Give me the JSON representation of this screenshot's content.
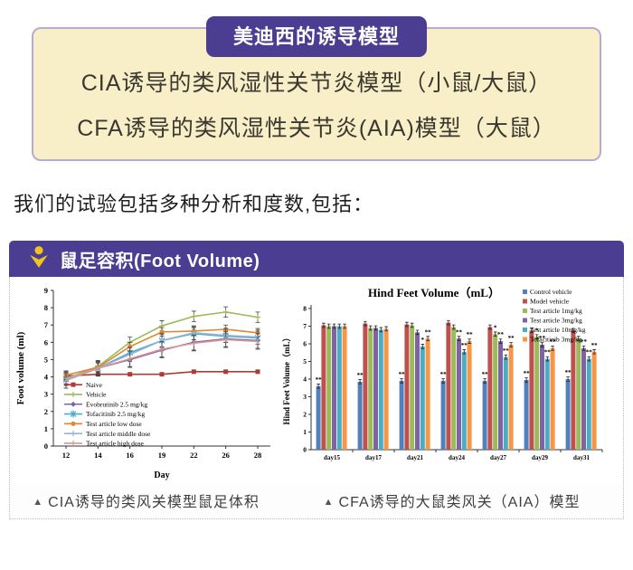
{
  "badge": {
    "label": "美迪西的诱导模型"
  },
  "model_box": {
    "lines": [
      "CIA诱导的类风湿性关节炎模型（小鼠/大鼠）",
      "CFA诱导的类风湿性关节炎(AIA)模型（大鼠）"
    ]
  },
  "intro": {
    "text": "我们的试验包括多种分析和度数,包括："
  },
  "panel": {
    "title": "鼠足容积(Foot Volume)",
    "icon_color": "#f2c21d",
    "captions": {
      "marker": "▲",
      "left": "CIA诱导的类风关模型鼠足体积",
      "right": "CFA诱导的大鼠类风关（AIA）模型"
    }
  },
  "colors": {
    "accent_purple": "#4b3d92",
    "cream": "#f8eec8",
    "cream_border": "#b7abd4"
  },
  "chart_data": [
    {
      "type": "line",
      "title": "",
      "xlabel": "Day",
      "ylabel": "Foot volume (ml)",
      "x": [
        12,
        14,
        16,
        19,
        22,
        26,
        28
      ],
      "ylim": [
        0,
        9
      ],
      "yticks": [
        0,
        1,
        2,
        3,
        4,
        5,
        6,
        7,
        8,
        9
      ],
      "grid": false,
      "legend_position": "inside-lower-left",
      "series": [
        {
          "name": "Naive",
          "color": "#b03a36",
          "marker": "square",
          "err": 0.08,
          "values": [
            4.05,
            4.15,
            4.15,
            4.15,
            4.3,
            4.3,
            4.3
          ]
        },
        {
          "name": "Vehicle",
          "color": "#9bbb59",
          "marker": "plus",
          "err": 0.3,
          "values": [
            3.9,
            4.6,
            6.0,
            6.95,
            7.5,
            7.75,
            7.45
          ]
        },
        {
          "name": "Evobrutinib 2.5 mg/kg",
          "color": "#8064a2",
          "marker": "diamond",
          "err": 0.45,
          "values": [
            3.8,
            4.5,
            5.0,
            5.55,
            6.0,
            6.2,
            6.1
          ]
        },
        {
          "name": "Tofacitinib 2.5 mg/kg",
          "color": "#4bacc6",
          "marker": "x",
          "err": 0.35,
          "values": [
            3.85,
            4.5,
            5.4,
            6.1,
            6.5,
            6.35,
            6.25
          ]
        },
        {
          "name": "Test article low dose",
          "color": "#e0862f",
          "marker": "circle",
          "err": 0.25,
          "values": [
            4.1,
            4.55,
            5.75,
            6.6,
            6.65,
            6.75,
            6.55
          ]
        },
        {
          "name": "Test article middle dose",
          "color": "#95b3d7",
          "marker": "tick",
          "err": 0.4,
          "values": [
            3.9,
            4.5,
            5.3,
            6.1,
            6.55,
            6.4,
            6.3
          ]
        },
        {
          "name": "Test article high dose",
          "color": "#d99694",
          "marker": "tick",
          "err": 0.45,
          "values": [
            3.8,
            4.5,
            5.05,
            5.6,
            5.95,
            6.15,
            6.05
          ]
        }
      ]
    },
    {
      "type": "bar",
      "title": "Hind Feet Volume（mL）",
      "ylabel": "Hind Feet Volume（mL）",
      "categories": [
        "day15",
        "day17",
        "day21",
        "day24",
        "day27",
        "day29",
        "day31"
      ],
      "ylim": [
        0,
        8
      ],
      "yticks": [
        0,
        1,
        2,
        3,
        4,
        5,
        6,
        7,
        8
      ],
      "grid": false,
      "err": 0.12,
      "legend_position": "upper-right",
      "series": [
        {
          "name": "Control vehicle",
          "color": "#4f81bd",
          "values": [
            3.6,
            3.85,
            3.9,
            3.9,
            3.9,
            3.95,
            4.0
          ],
          "sig": [
            "**",
            "**",
            "**",
            "**",
            "**",
            "**",
            "**"
          ]
        },
        {
          "name": "Model vehicle",
          "color": "#c0504d",
          "values": [
            7.05,
            7.15,
            7.1,
            7.2,
            6.95,
            6.75,
            6.75
          ],
          "sig": [
            "",
            "",
            "",
            "",
            "",
            "",
            ""
          ]
        },
        {
          "name": "Test article 1mg/kg",
          "color": "#9bbb59",
          "values": [
            7.0,
            6.9,
            7.05,
            6.95,
            6.55,
            6.4,
            6.3
          ],
          "sig": [
            "",
            "",
            "",
            "",
            "*",
            "*",
            ""
          ]
        },
        {
          "name": "Test article 3mg/kg",
          "color": "#8064a2",
          "values": [
            7.0,
            6.9,
            6.65,
            6.3,
            6.15,
            5.95,
            5.75
          ],
          "sig": [
            "",
            "",
            "",
            "**",
            "**",
            "**",
            "**"
          ]
        },
        {
          "name": "Test article 10mg/kg",
          "color": "#4bacc6",
          "values": [
            7.0,
            6.8,
            5.85,
            5.55,
            5.25,
            5.15,
            5.15
          ],
          "sig": [
            "",
            "",
            "*",
            "**",
            "**",
            "**",
            "**"
          ]
        },
        {
          "name": "Tofacitinib 3mg/kg",
          "color": "#f79646",
          "values": [
            7.0,
            6.85,
            6.3,
            6.15,
            5.95,
            5.75,
            5.55
          ],
          "sig": [
            "",
            "",
            "**",
            "**",
            "**",
            "**",
            "**"
          ]
        }
      ]
    }
  ]
}
